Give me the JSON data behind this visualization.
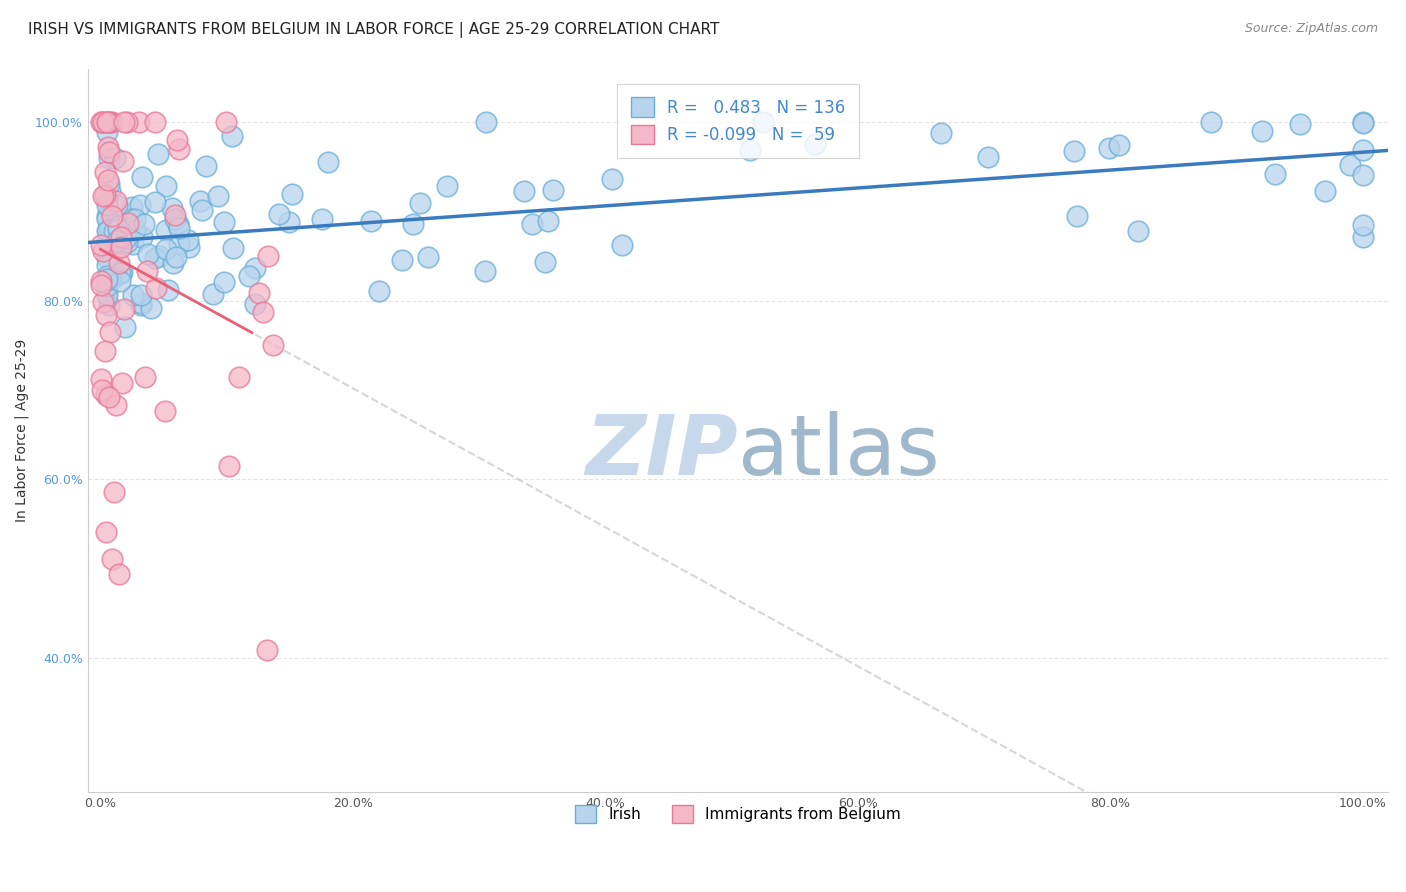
{
  "title": "IRISH VS IMMIGRANTS FROM BELGIUM IN LABOR FORCE | AGE 25-29 CORRELATION CHART",
  "source": "Source: ZipAtlas.com",
  "ylabel": "In Labor Force | Age 25-29",
  "xlim": [
    -0.01,
    1.02
  ],
  "ylim": [
    0.25,
    1.06
  ],
  "xticks": [
    0.0,
    0.2,
    0.4,
    0.6,
    0.8,
    1.0
  ],
  "yticks": [
    0.4,
    0.6,
    0.8,
    1.0
  ],
  "xticklabels": [
    "0.0%",
    "20.0%",
    "40.0%",
    "60.0%",
    "80.0%",
    "100.0%"
  ],
  "yticklabels": [
    "40.0%",
    "60.0%",
    "80.0%",
    "100.0%"
  ],
  "blue_R": 0.483,
  "blue_N": 136,
  "pink_R": -0.099,
  "pink_N": 59,
  "blue_color": "#b8d4ed",
  "blue_edge": "#6aaed6",
  "blue_line_color": "#3a7bbf",
  "pink_color": "#f4b8c8",
  "pink_edge": "#e87898",
  "pink_line_color": "#e8607a",
  "grid_color": "#dddddd",
  "watermark_color": "#c8d8ec",
  "title_fontsize": 11,
  "axis_label_fontsize": 10,
  "tick_fontsize": 9,
  "legend_fontsize": 12
}
